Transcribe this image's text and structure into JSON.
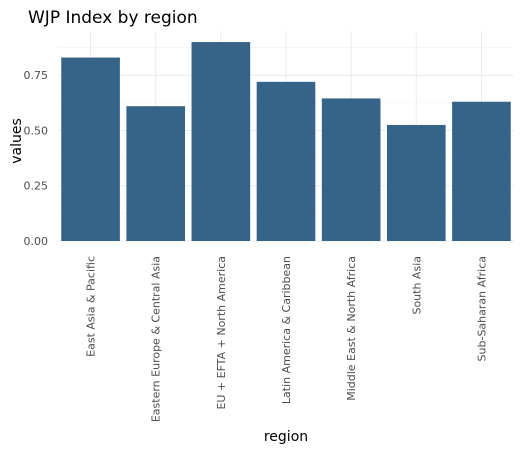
{
  "chart_data": {
    "type": "bar",
    "title": "WJP Index by region",
    "xlabel": "region",
    "ylabel": "values",
    "categories": [
      "East Asia & Pacific",
      "Eastern Europe & Central Asia",
      "EU + EFTA + North America",
      "Latin America & Caribbean",
      "Middle East & North Africa",
      "South Asia",
      "Sub-Saharan Africa"
    ],
    "values": [
      0.83,
      0.61,
      0.9,
      0.72,
      0.645,
      0.525,
      0.63
    ],
    "ylim": [
      0,
      0.9
    ],
    "yticks": [
      "0.00",
      "0.25",
      "0.50",
      "0.75"
    ],
    "ytick_values": [
      0,
      0.25,
      0.5,
      0.75
    ],
    "grid": true,
    "bar_color": "#366489"
  }
}
